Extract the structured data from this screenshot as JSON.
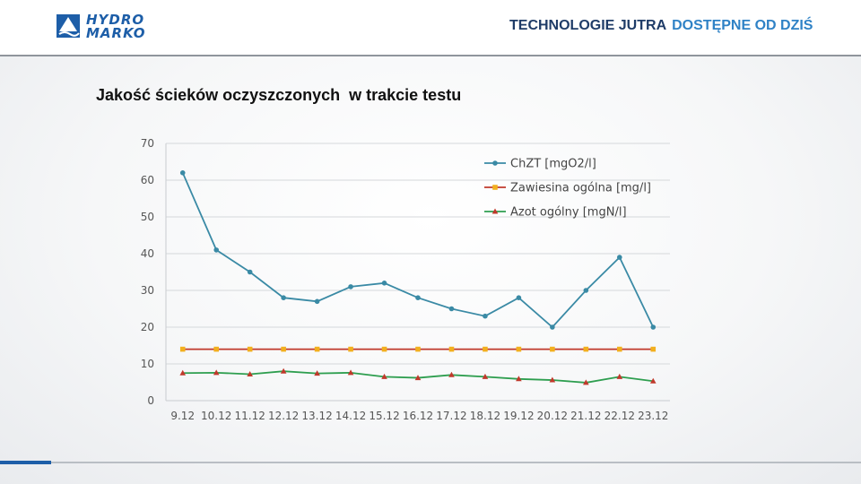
{
  "header": {
    "logo_line1": "HYDRO",
    "logo_line2": "MARKO",
    "tagline_part1": "TECHNOLOGIE JUTRA",
    "tagline_part2": "DOSTĘPNE OD DZIŚ",
    "colors": {
      "dark": "#1f3c68",
      "accent": "#2f82c6",
      "logo": "#1d5ea8"
    }
  },
  "slide": {
    "title": "Jakość ścieków oczyszczonych  w trakcie testu"
  },
  "chart_data": {
    "type": "line",
    "categories": [
      "9.12",
      "10.12",
      "11.12",
      "12.12",
      "13.12",
      "14.12",
      "15.12",
      "16.12",
      "17.12",
      "18.12",
      "19.12",
      "20.12",
      "21.12",
      "22.12",
      "23.12"
    ],
    "ylim": [
      0,
      70
    ],
    "yticks": [
      0,
      10,
      20,
      30,
      40,
      50,
      60,
      70
    ],
    "grid": true,
    "legend_position": "top-right",
    "series": [
      {
        "name": "ChZT [mgO2/l]",
        "color": "#3a8aa5",
        "marker": "circle",
        "values": [
          62,
          41,
          35,
          28,
          27,
          31,
          32,
          28,
          25,
          23,
          28,
          20,
          30,
          39,
          20
        ]
      },
      {
        "name": "Zawiesina ogólna [mg/l]",
        "color": "#c0392b",
        "marker_color": "#f2b01e",
        "marker": "square",
        "values": [
          14,
          14,
          14,
          14,
          14,
          14,
          14,
          14,
          14,
          14,
          14,
          14,
          14,
          14,
          14
        ]
      },
      {
        "name": "Azot ogólny [mgN/l]",
        "color": "#2e9e4f",
        "marker_color": "#c0392b",
        "marker": "triangle",
        "values": [
          7.5,
          7.6,
          7.2,
          8.0,
          7.4,
          7.6,
          6.5,
          6.2,
          7.0,
          6.5,
          5.9,
          5.6,
          4.9,
          6.5,
          5.3
        ]
      }
    ]
  }
}
